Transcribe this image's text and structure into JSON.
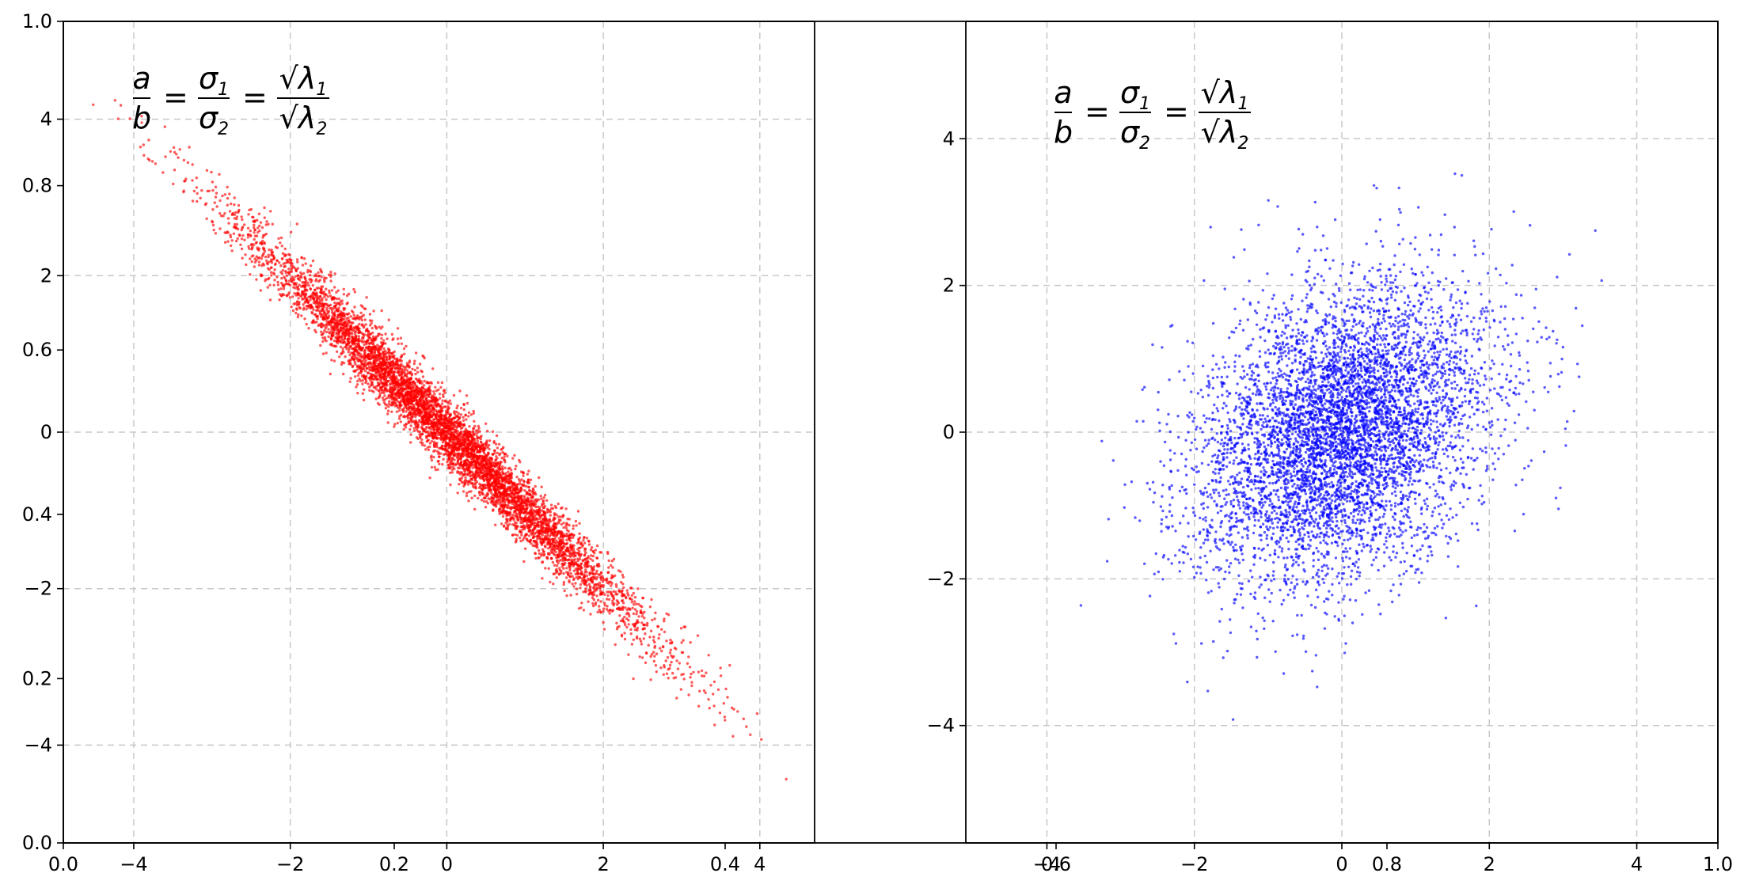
{
  "chart_data": [
    {
      "type": "scatter",
      "title": "",
      "xlabel": "",
      "ylabel": "",
      "annotation": "a/b = σ1/σ2 = √λ1/√λ2",
      "grid": true,
      "xlim": [
        -4.9,
        4.7
      ],
      "ylim": [
        -5.25,
        5.25
      ],
      "xticks": [
        -4,
        -2,
        0,
        2,
        4
      ],
      "yticks": [
        -4,
        -2,
        0,
        2,
        4
      ],
      "series": [
        {
          "color": "#ff0000",
          "n": 6000,
          "mean": [
            0,
            0
          ],
          "std": [
            1.25,
            1.25
          ],
          "correlation": -0.985
        }
      ]
    },
    {
      "type": "scatter",
      "title": "",
      "xlabel": "",
      "ylabel": "",
      "annotation": "a/b = σ1/σ2 = √λ1/√λ2",
      "grid": true,
      "xlim": [
        -5.1,
        5.1
      ],
      "ylim": [
        -5.6,
        5.6
      ],
      "xticks": [
        -4,
        -2,
        0,
        2,
        4
      ],
      "yticks": [
        -4,
        -2,
        0,
        2,
        4
      ],
      "series": [
        {
          "color": "#0000ff",
          "n": 6000,
          "mean": [
            0,
            0
          ],
          "std": [
            1.0,
            1.0
          ],
          "correlation": 0.3
        }
      ]
    }
  ],
  "outer_axes": {
    "xticks": [
      "0.0",
      "0.2",
      "0.4",
      "0.6",
      "0.8",
      "1.0"
    ],
    "yticks": [
      "0.0",
      "0.2",
      "0.4",
      "0.6",
      "0.8",
      "1.0"
    ]
  }
}
